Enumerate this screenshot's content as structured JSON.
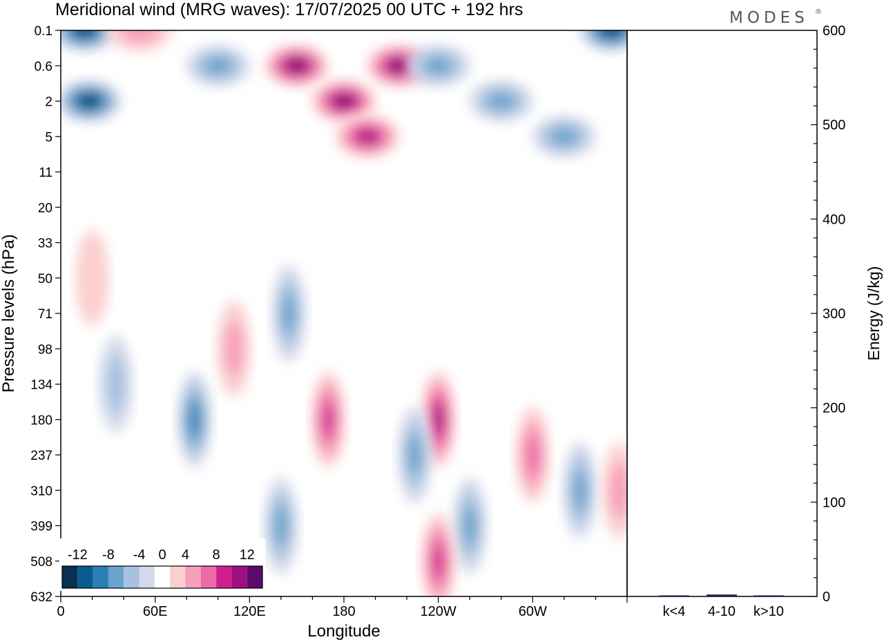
{
  "title": "Meridional wind (MRG waves):  17/07/2025  00 UTC  + 192 hrs",
  "brand": "MODES",
  "brand_mark": "®",
  "colors": {
    "neg": [
      "#08304f",
      "#0b5c8e",
      "#2a7fb5",
      "#6aa3cc",
      "#a7c2df",
      "#d3d8ea"
    ],
    "pos": [
      "#fbcfcf",
      "#f79fba",
      "#ec6aa6",
      "#cf1f8f",
      "#9e0f80",
      "#5a0a6b"
    ]
  },
  "chart_data": [
    {
      "type": "heatmap",
      "title": "Meridional wind (MRG waves):  17/07/2025  00 UTC  + 192 hrs",
      "xlabel": "Longitude",
      "ylabel": "Pressure levels (hPa)",
      "x_ticks": [
        "0",
        "60E",
        "120E",
        "180",
        "120W",
        "60W"
      ],
      "x_tick_lon": [
        0,
        60,
        120,
        180,
        240,
        300
      ],
      "xlim": [
        0,
        360
      ],
      "y_ticks": [
        "0.1",
        "0.6",
        "2",
        "5",
        "11",
        "20",
        "33",
        "50",
        "71",
        "98",
        "134",
        "180",
        "237",
        "310",
        "399",
        "508",
        "632"
      ],
      "colorbar": {
        "labels": [
          "-12",
          "-8",
          "-4",
          "0",
          "4",
          "8",
          "12"
        ],
        "levels": [
          -14,
          -12,
          -10,
          -8,
          -6,
          -4,
          -2,
          2,
          4,
          6,
          8,
          10,
          12,
          14
        ]
      },
      "features": [
        {
          "lon": 15,
          "level": "0.1",
          "value": -14
        },
        {
          "lon": 18,
          "level": "2",
          "value": -13
        },
        {
          "lon": 50,
          "level": "0.1",
          "value": 4
        },
        {
          "lon": 100,
          "level": "0.6",
          "value": -8
        },
        {
          "lon": 150,
          "level": "0.6",
          "value": 13
        },
        {
          "lon": 180,
          "level": "2",
          "value": 14
        },
        {
          "lon": 215,
          "level": "0.6",
          "value": 13
        },
        {
          "lon": 195,
          "level": "5",
          "value": 12
        },
        {
          "lon": 240,
          "level": "0.6",
          "value": -6
        },
        {
          "lon": 280,
          "level": "2",
          "value": -8
        },
        {
          "lon": 320,
          "level": "5",
          "value": -7
        },
        {
          "lon": 350,
          "level": "0.1",
          "value": -13
        },
        {
          "lon": 20,
          "level": "50",
          "value": 3
        },
        {
          "lon": 110,
          "level": "98",
          "value": 5
        },
        {
          "lon": 145,
          "level": "71",
          "value": -6
        },
        {
          "lon": 170,
          "level": "180",
          "value": 9
        },
        {
          "lon": 85,
          "level": "180",
          "value": -10
        },
        {
          "lon": 35,
          "level": "134",
          "value": -5
        },
        {
          "lon": 240,
          "level": "180",
          "value": 11
        },
        {
          "lon": 225,
          "level": "237",
          "value": -7
        },
        {
          "lon": 260,
          "level": "399",
          "value": -8
        },
        {
          "lon": 300,
          "level": "237",
          "value": 8
        },
        {
          "lon": 330,
          "level": "310",
          "value": -7
        },
        {
          "lon": 355,
          "level": "310",
          "value": 5
        },
        {
          "lon": 140,
          "level": "399",
          "value": -6
        },
        {
          "lon": 240,
          "level": "508",
          "value": 9
        }
      ]
    },
    {
      "type": "bar",
      "ylabel": "Energy (J/kg)",
      "categories": [
        "k<4",
        "4-10",
        "k>10"
      ],
      "values": [
        1,
        2,
        0.5
      ],
      "ylim": [
        0,
        600
      ],
      "y_ticks": [
        "0",
        "100",
        "200",
        "300",
        "400",
        "500",
        "600"
      ]
    }
  ]
}
